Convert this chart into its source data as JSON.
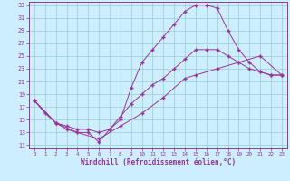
{
  "xlabel": "Windchill (Refroidissement éolien,°C)",
  "bg_color": "#cceeff",
  "line_color": "#993399",
  "grid_color": "#99cccc",
  "xmin": 0,
  "xmax": 23,
  "ymin": 11,
  "ymax": 33,
  "yticks": [
    11,
    13,
    15,
    17,
    19,
    21,
    23,
    25,
    27,
    29,
    31,
    33
  ],
  "xticks": [
    0,
    1,
    2,
    3,
    4,
    5,
    6,
    7,
    8,
    9,
    10,
    11,
    12,
    13,
    14,
    15,
    16,
    17,
    18,
    19,
    20,
    21,
    22,
    23
  ],
  "line1_x": [
    0,
    1,
    2,
    3,
    4,
    5,
    6,
    7,
    8,
    9,
    10,
    11,
    12,
    13,
    14,
    15,
    16,
    17,
    18,
    19,
    20,
    21,
    22,
    23
  ],
  "line1_y": [
    18,
    16,
    14.5,
    13.5,
    13,
    13,
    11.5,
    13.5,
    15,
    20,
    24,
    26,
    28,
    30,
    32,
    33,
    33,
    32.5,
    29,
    26,
    24,
    22.5,
    22,
    22
  ],
  "line2_x": [
    0,
    2,
    3,
    4,
    5,
    6,
    7,
    8,
    9,
    10,
    11,
    12,
    13,
    14,
    15,
    16,
    17,
    18,
    19,
    20,
    21,
    22,
    23
  ],
  "line2_y": [
    18,
    14.5,
    14,
    13.5,
    13.5,
    13,
    13.5,
    15.5,
    17.5,
    19,
    20.5,
    21.5,
    23,
    24.5,
    26,
    26,
    26,
    25,
    24,
    23,
    22.5,
    22,
    22
  ],
  "line3_x": [
    0,
    2,
    4,
    6,
    8,
    10,
    12,
    14,
    15,
    17,
    19,
    21,
    23
  ],
  "line3_y": [
    18,
    14.5,
    13,
    12,
    14,
    16,
    18.5,
    21.5,
    22,
    23,
    24,
    25,
    22
  ]
}
